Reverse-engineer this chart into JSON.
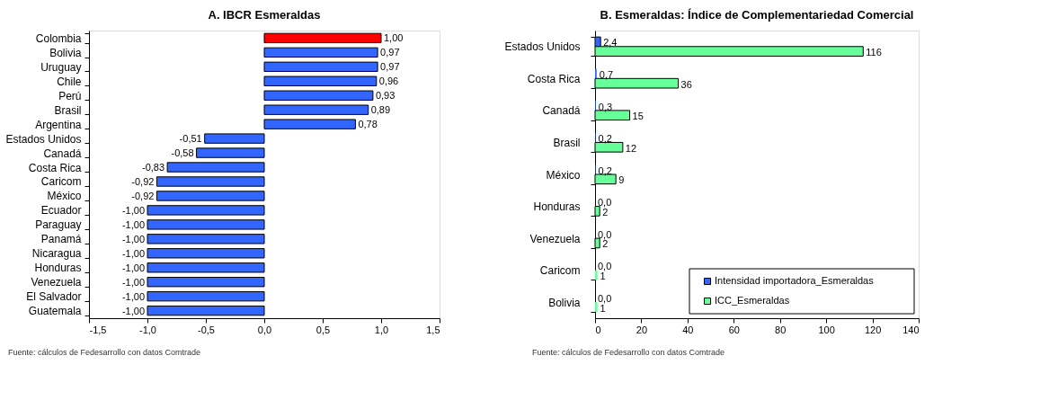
{
  "chart_data": [
    {
      "type": "bar",
      "orientation": "horizontal",
      "title": "A. IBCR Esmeraldas",
      "categories": [
        "Colombia",
        "Bolivia",
        "Uruguay",
        "Chile",
        "Perú",
        "Brasil",
        "Argentina",
        "Estados Unidos",
        "Canadá",
        "Costa Rica",
        "Caricom",
        "México",
        "Ecuador",
        "Paraguay",
        "Panamá",
        "Nicaragua",
        "Honduras",
        "Venezuela",
        "El Salvador",
        "Guatemala"
      ],
      "values": [
        1.0,
        0.97,
        0.97,
        0.96,
        0.93,
        0.89,
        0.78,
        -0.51,
        -0.58,
        -0.83,
        -0.92,
        -0.92,
        -1.0,
        -1.0,
        -1.0,
        -1.0,
        -1.0,
        -1.0,
        -1.0,
        -1.0
      ],
      "colors": [
        "#ff0000",
        "#3366ff",
        "#3366ff",
        "#3366ff",
        "#3366ff",
        "#3366ff",
        "#3366ff",
        "#3366ff",
        "#3366ff",
        "#3366ff",
        "#3366ff",
        "#3366ff",
        "#3366ff",
        "#3366ff",
        "#3366ff",
        "#3366ff",
        "#3366ff",
        "#3366ff",
        "#3366ff",
        "#3366ff"
      ],
      "value_labels": [
        "1,00",
        "0,97",
        "0,97",
        "0,96",
        "0,93",
        "0,89",
        "0,78",
        "-0,51",
        "-0,58",
        "-0,83",
        "-0,92",
        "-0,92",
        "-1,00",
        "-1,00",
        "-1,00",
        "-1,00",
        "-1,00",
        "-1,00",
        "-1,00",
        "-1,00"
      ],
      "xlim": [
        -1.5,
        1.5
      ],
      "xticks": [
        {
          "value": -1.5,
          "label": "-1,5"
        },
        {
          "value": -1.0,
          "label": "-1,0"
        },
        {
          "value": -0.5,
          "label": "-0,5"
        },
        {
          "value": 0,
          "label": "0,0"
        },
        {
          "value": 0.5,
          "label": "0,5"
        },
        {
          "value": 1.0,
          "label": "1,0"
        },
        {
          "value": 1.5,
          "label": "1,5"
        }
      ],
      "grid": false,
      "legend": false,
      "annotations": [
        "Fuente:  cálculos de Fedesarrollo con datos Comtrade"
      ]
    },
    {
      "type": "bar",
      "orientation": "horizontal",
      "title": "B. Esmeraldas: Índice de Complementariedad Comercial",
      "categories": [
        "Estados Unidos",
        "Costa Rica",
        "Canadá",
        "Brasil",
        "México",
        "Honduras",
        "Venezuela",
        "Caricom",
        "Bolivia"
      ],
      "series": [
        {
          "name": "Intensidad importadora_Esmeraldas",
          "color": "#3366ff",
          "values": [
            2.4,
            0.7,
            0.3,
            0.2,
            0.2,
            0.0,
            0.0,
            0.0,
            0.0
          ],
          "value_labels": [
            "2,4",
            "0,7",
            "0,3",
            "0,2",
            "0,2",
            "0,0",
            "0,0",
            "0,0",
            "0,0"
          ]
        },
        {
          "name": "ICC_Esmeraldas",
          "color": "#66ff99",
          "values": [
            116,
            36,
            15,
            12,
            9,
            2,
            2,
            1,
            1
          ],
          "value_labels": [
            "116",
            "36",
            "15",
            "12",
            "9",
            "2",
            "2",
            "1",
            "1"
          ]
        }
      ],
      "xlim": [
        0,
        140
      ],
      "xticks": [
        0,
        20,
        40,
        60,
        80,
        100,
        120,
        140
      ],
      "grid": false,
      "legend": "bottom right",
      "annotations": [
        "Fuente: cálculos de Fedesarrollo con datos Comtrade"
      ]
    }
  ]
}
